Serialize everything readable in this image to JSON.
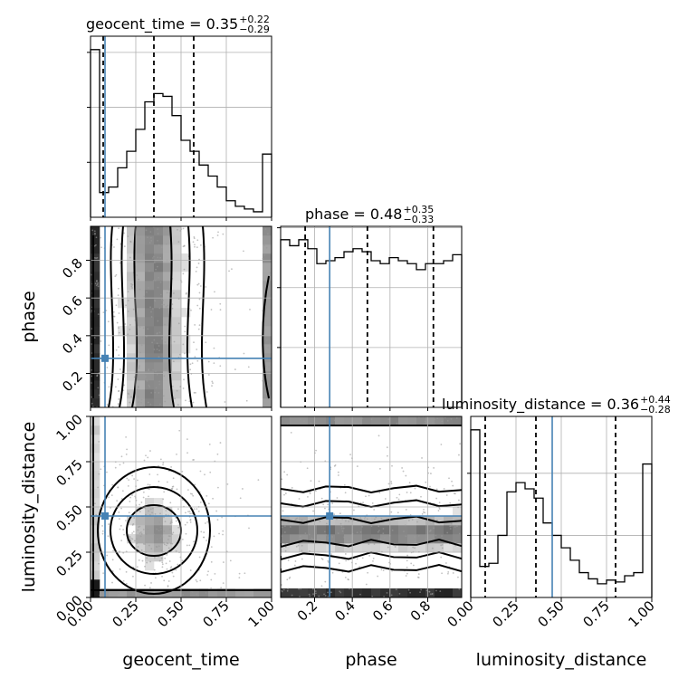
{
  "chart_data": {
    "type": "corner",
    "parameters": [
      "geocent_time",
      "phase",
      "luminosity_distance"
    ],
    "axis_labels": {
      "geocent_time": "geocent_time",
      "phase": "phase",
      "luminosity_distance": "luminosity_distance"
    },
    "ranges": {
      "geocent_time": [
        0,
        1
      ],
      "phase": [
        0.02,
        0.98
      ],
      "luminosity_distance": [
        0,
        1
      ]
    },
    "ticks": {
      "geocent_time": [
        "0.00",
        "0.25",
        "0.50",
        "0.75",
        "1.00"
      ],
      "phase": [
        "0.2",
        "0.4",
        "0.6",
        "0.8"
      ],
      "luminosity_distance": [
        "0.00",
        "0.25",
        "0.50",
        "0.75",
        "1.00"
      ]
    },
    "truths": {
      "geocent_time": 0.08,
      "phase": 0.28,
      "luminosity_distance": 0.45
    },
    "titles": [
      {
        "param": "geocent_time",
        "text": "geocent_time = 0.35",
        "plus": "+0.22",
        "minus": "−0.29"
      },
      {
        "param": "phase",
        "text": "phase = 0.48",
        "plus": "+0.35",
        "minus": "−0.33"
      },
      {
        "param": "luminosity_distance",
        "text": "luminosity_distance = 0.36",
        "plus": "+0.44",
        "minus": "−0.28"
      }
    ],
    "quantiles": {
      "geocent_time": [
        0.07,
        0.35,
        0.57
      ],
      "phase": [
        0.15,
        0.48,
        0.83
      ],
      "luminosity_distance": [
        0.08,
        0.36,
        0.8
      ]
    },
    "histograms": {
      "geocent_time": {
        "edges": [
          0.0,
          0.05,
          0.1,
          0.15,
          0.2,
          0.25,
          0.3,
          0.35,
          0.4,
          0.45,
          0.5,
          0.55,
          0.6,
          0.65,
          0.7,
          0.75,
          0.8,
          0.85,
          0.9,
          0.95,
          1.0
        ],
        "counts": [
          305,
          45,
          55,
          90,
          120,
          160,
          210,
          225,
          220,
          185,
          140,
          120,
          95,
          75,
          55,
          30,
          20,
          15,
          10,
          115
        ]
      },
      "phase": {
        "edges": [
          0.02,
          0.068,
          0.116,
          0.164,
          0.212,
          0.26,
          0.308,
          0.356,
          0.404,
          0.452,
          0.5,
          0.548,
          0.596,
          0.644,
          0.692,
          0.74,
          0.788,
          0.836,
          0.884,
          0.932,
          0.98
        ],
        "counts": [
          280,
          270,
          280,
          265,
          240,
          245,
          250,
          260,
          265,
          260,
          245,
          240,
          250,
          245,
          240,
          230,
          240,
          240,
          245,
          255
        ]
      },
      "luminosity_distance": {
        "edges": [
          0.0,
          0.05,
          0.1,
          0.15,
          0.2,
          0.25,
          0.3,
          0.35,
          0.4,
          0.45,
          0.5,
          0.55,
          0.6,
          0.65,
          0.7,
          0.75,
          0.8,
          0.85,
          0.9,
          0.95,
          1.0
        ],
        "counts": [
          270,
          50,
          55,
          100,
          170,
          185,
          175,
          160,
          120,
          100,
          80,
          60,
          40,
          30,
          22,
          28,
          25,
          35,
          40,
          215
        ]
      }
    }
  }
}
